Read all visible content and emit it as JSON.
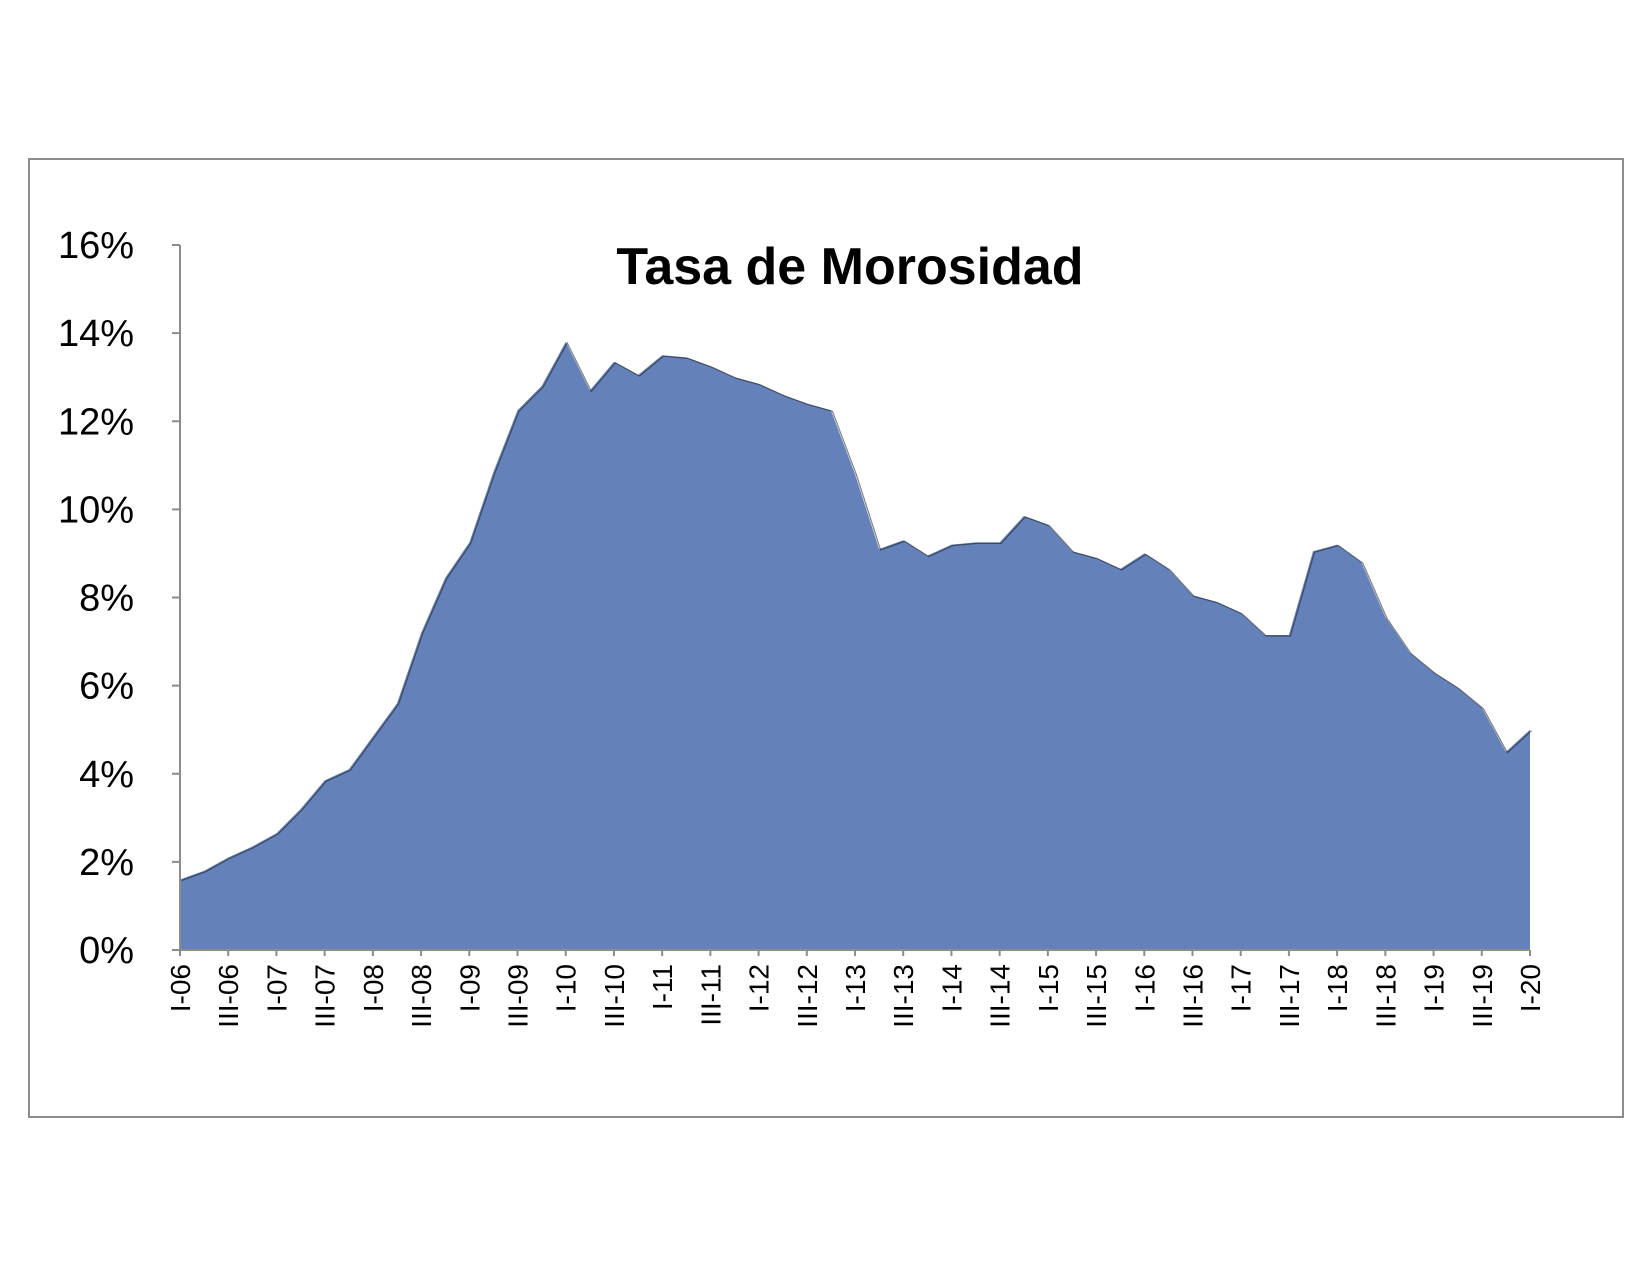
{
  "chart_data": {
    "type": "area",
    "title": "Tasa de Morosidad",
    "xlabel": "",
    "ylabel": "",
    "ylim": [
      0,
      16
    ],
    "y_ticks": [
      "0%",
      "2%",
      "4%",
      "6%",
      "8%",
      "10%",
      "12%",
      "14%",
      "16%"
    ],
    "y_tick_values": [
      0,
      2,
      4,
      6,
      8,
      10,
      12,
      14,
      16
    ],
    "grid": false,
    "legend": "none",
    "colors": {
      "fill": "#6481b9",
      "stroke": "#000000",
      "axis": "#8c8c8c"
    },
    "x_tick_labels": [
      "I-06",
      "III-06",
      "I-07",
      "III-07",
      "I-08",
      "III-08",
      "I-09",
      "III-09",
      "I-10",
      "III-10",
      "I-11",
      "III-11",
      "I-12",
      "III-12",
      "I-13",
      "III-13",
      "I-14",
      "III-14",
      "I-15",
      "III-15",
      "I-16",
      "III-16",
      "I-17",
      "III-17",
      "I-18",
      "III-18",
      "I-19",
      "III-19",
      "I-20"
    ],
    "x": [
      "I-06",
      "II-06",
      "III-06",
      "IV-06",
      "I-07",
      "II-07",
      "III-07",
      "IV-07",
      "I-08",
      "II-08",
      "III-08",
      "IV-08",
      "I-09",
      "II-09",
      "III-09",
      "IV-09",
      "I-10",
      "II-10",
      "III-10",
      "IV-10",
      "I-11",
      "II-11",
      "III-11",
      "IV-11",
      "I-12",
      "II-12",
      "III-12",
      "IV-12",
      "I-13",
      "II-13",
      "III-13",
      "IV-13",
      "I-14",
      "II-14",
      "III-14",
      "IV-14",
      "I-15",
      "II-15",
      "III-15",
      "IV-15",
      "I-16",
      "II-16",
      "III-16",
      "IV-16",
      "I-17",
      "II-17",
      "III-17",
      "IV-17",
      "I-18",
      "II-18",
      "III-18",
      "IV-18",
      "I-19",
      "II-19",
      "III-19",
      "IV-19",
      "I-20"
    ],
    "values": [
      1.6,
      1.8,
      2.1,
      2.35,
      2.65,
      3.2,
      3.85,
      4.1,
      4.85,
      5.6,
      7.2,
      8.45,
      9.25,
      10.85,
      12.25,
      12.8,
      13.8,
      12.7,
      13.35,
      13.05,
      13.5,
      13.45,
      13.25,
      13.0,
      12.85,
      12.6,
      12.4,
      12.25,
      10.8,
      9.1,
      9.3,
      8.95,
      9.2,
      9.25,
      9.25,
      9.85,
      9.65,
      9.05,
      8.9,
      8.65,
      9.0,
      8.65,
      8.05,
      7.9,
      7.65,
      7.15,
      7.15,
      9.05,
      9.2,
      8.8,
      7.55,
      6.75,
      6.3,
      5.95,
      5.5,
      4.5,
      5.0
    ]
  }
}
